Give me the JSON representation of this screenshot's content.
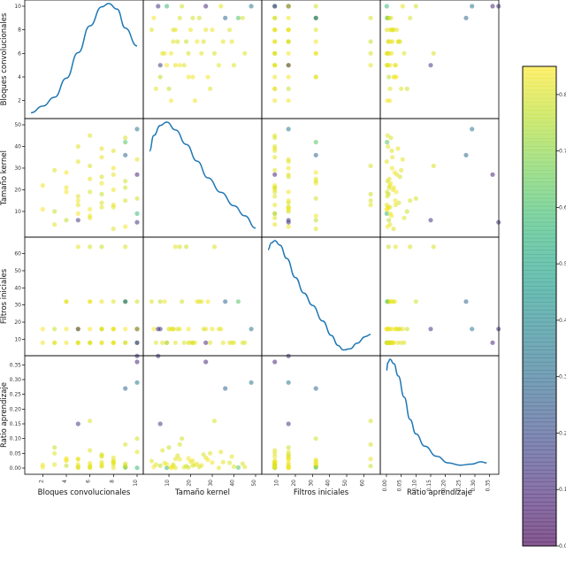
{
  "chart_data": {
    "type": "scatter",
    "kind": "scatter-matrix",
    "variables": [
      "Bloques convolucionales",
      "Tamaño kernel",
      "Filtros iniciales",
      "Ratio aprendizaje"
    ],
    "ranges": [
      [
        1,
        10
      ],
      [
        1,
        50
      ],
      [
        4,
        66
      ],
      [
        0,
        0.36
      ]
    ],
    "ticks": [
      [
        2,
        4,
        6,
        8,
        10
      ],
      [
        10,
        20,
        30,
        40,
        50
      ],
      [
        10,
        20,
        30,
        40,
        50,
        60
      ],
      [
        0.0,
        0.05,
        0.1,
        0.15,
        0.2,
        0.25,
        0.3,
        0.35
      ]
    ],
    "tick_labels": [
      [
        "2",
        "4",
        "6",
        "8",
        "10"
      ],
      [
        "10",
        "20",
        "30",
        "40",
        "50"
      ],
      [
        "10",
        "20",
        "30",
        "40",
        "50",
        "60"
      ],
      [
        "0.00",
        "0.05",
        "0.10",
        "0.15",
        "0.20",
        "0.25",
        "0.30",
        "0.35"
      ]
    ],
    "kde": [
      [
        [
          1.0,
          0.02
        ],
        [
          2.0,
          0.08
        ],
        [
          3.0,
          0.16
        ],
        [
          4.0,
          0.33
        ],
        [
          5.0,
          0.56
        ],
        [
          6.0,
          0.8
        ],
        [
          7.0,
          0.97
        ],
        [
          7.6,
          1.0
        ],
        [
          8.3,
          0.95
        ],
        [
          9.0,
          0.78
        ],
        [
          10.0,
          0.62
        ]
      ],
      [
        [
          1,
          0.74
        ],
        [
          3,
          0.88
        ],
        [
          6,
          0.97
        ],
        [
          9,
          1.0
        ],
        [
          13,
          0.93
        ],
        [
          18,
          0.8
        ],
        [
          23,
          0.65
        ],
        [
          28,
          0.5
        ],
        [
          34,
          0.37
        ],
        [
          40,
          0.25
        ],
        [
          45,
          0.16
        ],
        [
          50,
          0.05
        ]
      ],
      [
        [
          4,
          0.92
        ],
        [
          6,
          0.98
        ],
        [
          8,
          1.0
        ],
        [
          11,
          0.96
        ],
        [
          15,
          0.84
        ],
        [
          20,
          0.67
        ],
        [
          25,
          0.53
        ],
        [
          30,
          0.42
        ],
        [
          36,
          0.28
        ],
        [
          41,
          0.15
        ],
        [
          45,
          0.06
        ],
        [
          48,
          0.02
        ],
        [
          52,
          0.03
        ],
        [
          56,
          0.08
        ],
        [
          61,
          0.14
        ],
        [
          64,
          0.16
        ]
      ],
      [
        [
          0.0,
          0.9
        ],
        [
          0.005,
          0.97
        ],
        [
          0.012,
          1.0
        ],
        [
          0.025,
          0.96
        ],
        [
          0.04,
          0.85
        ],
        [
          0.06,
          0.66
        ],
        [
          0.08,
          0.46
        ],
        [
          0.1,
          0.33
        ],
        [
          0.13,
          0.22
        ],
        [
          0.17,
          0.13
        ],
        [
          0.21,
          0.07
        ],
        [
          0.25,
          0.05
        ],
        [
          0.29,
          0.06
        ],
        [
          0.32,
          0.08
        ],
        [
          0.34,
          0.07
        ]
      ]
    ],
    "points": [
      [
        10,
        9,
        8,
        0.001,
        0.58
      ],
      [
        9,
        24,
        32,
        0.004,
        0.79
      ],
      [
        8,
        12,
        16,
        0.012,
        0.81
      ],
      [
        7,
        35,
        8,
        0.02,
        0.82
      ],
      [
        6,
        19,
        8,
        0.002,
        0.8
      ],
      [
        5,
        15,
        16,
        0.03,
        0.83
      ],
      [
        4,
        6,
        32,
        0.008,
        0.77
      ],
      [
        3,
        29,
        8,
        0.05,
        0.81
      ],
      [
        2,
        11,
        16,
        0.003,
        0.84
      ],
      [
        9,
        44,
        8,
        0.015,
        0.8
      ],
      [
        8,
        27,
        16,
        0.035,
        0.82
      ],
      [
        7,
        18,
        64,
        0.007,
        0.78
      ],
      [
        6,
        7,
        8,
        0.06,
        0.81
      ],
      [
        5,
        33,
        16,
        0.001,
        0.82
      ],
      [
        4,
        21,
        8,
        0.025,
        0.83
      ],
      [
        10,
        16,
        32,
        0.1,
        0.79
      ],
      [
        9,
        3,
        16,
        0.004,
        0.84
      ],
      [
        8,
        38,
        8,
        0.018,
        0.81
      ],
      [
        7,
        14,
        16,
        0.042,
        0.8
      ],
      [
        6,
        25,
        32,
        0.009,
        0.82
      ],
      [
        5,
        9,
        8,
        0.013,
        0.84
      ],
      [
        10,
        48,
        16,
        0.29,
        0.35
      ],
      [
        9,
        42,
        32,
        0.002,
        0.62
      ],
      [
        8,
        20,
        8,
        0.022,
        0.83
      ],
      [
        7,
        12,
        16,
        0.006,
        0.82
      ],
      [
        6,
        31,
        64,
        0.16,
        0.8
      ],
      [
        5,
        17,
        8,
        0.003,
        0.81
      ],
      [
        4,
        28,
        32,
        0.028,
        0.84
      ],
      [
        3,
        10,
        16,
        0.07,
        0.78
      ],
      [
        2,
        22,
        8,
        0.011,
        0.83
      ],
      [
        10,
        5,
        16,
        0.38,
        0.12
      ],
      [
        9,
        36,
        32,
        0.27,
        0.28
      ],
      [
        8,
        13,
        8,
        0.001,
        0.82
      ],
      [
        7,
        26,
        16,
        0.046,
        0.8
      ],
      [
        6,
        8,
        32,
        0.017,
        0.83
      ],
      [
        5,
        40,
        8,
        0.005,
        0.81
      ],
      [
        4,
        19,
        16,
        0.033,
        0.84
      ],
      [
        3,
        4,
        8,
        0.012,
        0.82
      ],
      [
        9,
        15,
        64,
        0.08,
        0.8
      ],
      [
        8,
        30,
        16,
        0.019,
        0.83
      ],
      [
        10,
        27,
        8,
        0.36,
        0.1
      ],
      [
        5,
        6,
        16,
        0.15,
        0.15
      ],
      [
        7,
        39,
        8,
        0.039,
        0.82
      ],
      [
        6,
        11,
        16,
        0.001,
        0.84
      ],
      [
        8,
        2,
        32,
        0.024,
        0.81
      ],
      [
        9,
        21,
        8,
        0.009,
        0.79
      ],
      [
        10,
        34,
        16,
        0.055,
        0.82
      ],
      [
        7,
        23,
        32,
        0.014,
        0.83
      ],
      [
        6,
        45,
        8,
        0.004,
        0.81
      ],
      [
        5,
        13,
        64,
        0.031,
        0.82
      ]
    ],
    "colorbar": {
      "min": 0.0,
      "max": 0.85,
      "ticks": [
        0.0,
        0.1,
        0.2,
        0.3,
        0.4,
        0.5,
        0.6,
        0.7,
        0.8
      ],
      "tick_labels": [
        "0.0",
        "0.1",
        "0.2",
        "0.3",
        "0.4",
        "0.5",
        "0.6",
        "0.7",
        "0.8"
      ],
      "colormap": "viridis"
    },
    "grid": false,
    "point_alpha": 0.55
  }
}
